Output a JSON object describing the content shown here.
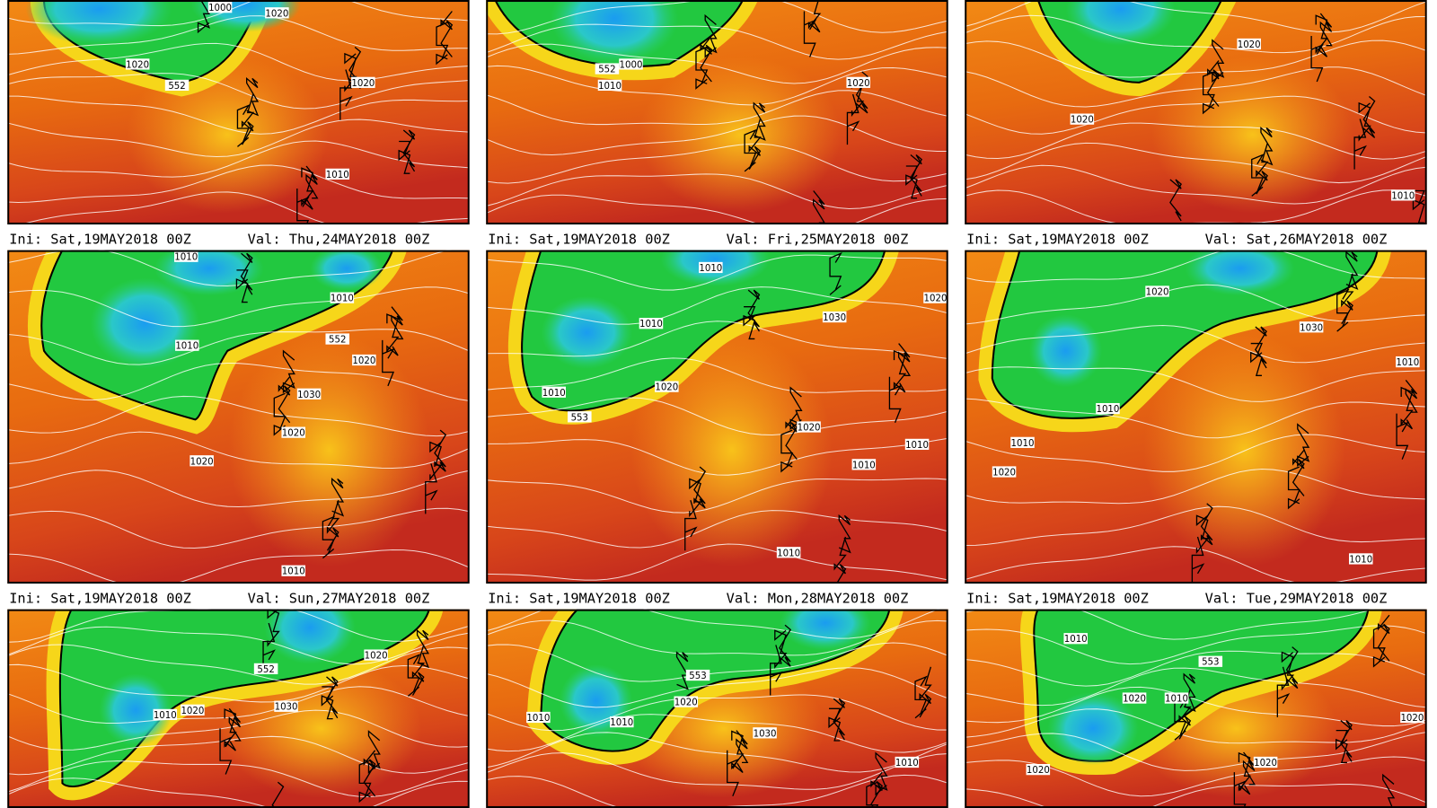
{
  "panels": [
    {
      "contour_labels": [
        "1000",
        "1020",
        "1020",
        "552",
        "1020",
        "1010"
      ]
    },
    {
      "contour_labels": [
        "1000",
        "552",
        "1010",
        "1020"
      ]
    },
    {
      "contour_labels": [
        "1020",
        "1020",
        "1010"
      ]
    },
    {
      "contour_labels": [
        "1010",
        "1010",
        "1010",
        "552",
        "1020",
        "1030",
        "1020",
        "1020",
        "1010"
      ]
    },
    {
      "contour_labels": [
        "1010",
        "1010",
        "1030",
        "1020",
        "1010",
        "553",
        "1020",
        "1020",
        "1010",
        "1010",
        "1010"
      ]
    },
    {
      "contour_labels": [
        "1020",
        "1030",
        "1010",
        "1010",
        "1010",
        "1020",
        "1010"
      ]
    },
    {
      "contour_labels": [
        "1020",
        "552",
        "1030",
        "1010",
        "1020"
      ]
    },
    {
      "contour_labels": [
        "553",
        "1020",
        "1010",
        "1010",
        "1030",
        "1010"
      ]
    },
    {
      "contour_labels": [
        "1010",
        "553",
        "1020",
        "1010",
        "1020",
        "1020",
        "1020"
      ]
    }
  ],
  "captions": [
    {
      "ini": "Ini: Sat,19MAY2018 00Z",
      "val": "Val: Thu,24MAY2018 00Z"
    },
    {
      "ini": "Ini: Sat,19MAY2018 00Z",
      "val": "Val: Fri,25MAY2018 00Z"
    },
    {
      "ini": "Ini: Sat,19MAY2018 00Z",
      "val": "Val: Sat,26MAY2018 00Z"
    },
    {
      "ini": "Ini: Sat,19MAY2018 00Z",
      "val": "Val: Sun,27MAY2018 00Z"
    },
    {
      "ini": "Ini: Sat,19MAY2018 00Z",
      "val": "Val: Mon,28MAY2018 00Z"
    },
    {
      "ini": "Ini: Sat,19MAY2018 00Z",
      "val": "Val: Tue,29MAY2018 00Z"
    }
  ]
}
